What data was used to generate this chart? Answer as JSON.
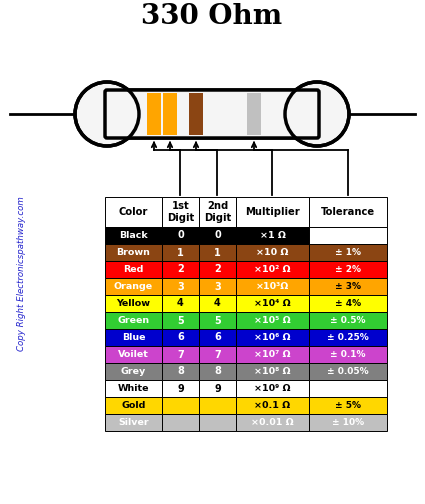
{
  "title": "330 Ohm",
  "colors": [
    "Black",
    "Brown",
    "Red",
    "Orange",
    "Yellow",
    "Green",
    "Blue",
    "Voilet",
    "Grey",
    "White",
    "Gold",
    "Silver"
  ],
  "digit1": [
    "0",
    "1",
    "2",
    "3",
    "4",
    "5",
    "6",
    "7",
    "8",
    "9",
    "",
    ""
  ],
  "digit2": [
    "0",
    "1",
    "2",
    "3",
    "4",
    "5",
    "6",
    "7",
    "8",
    "9",
    "",
    ""
  ],
  "multiplier": [
    "×1 Ω",
    "×10 Ω",
    "×10² Ω",
    "×10³Ω",
    "×10⁴ Ω",
    "×10⁵ Ω",
    "×10⁶ Ω",
    "×10⁷ Ω",
    "×10⁸ Ω",
    "×10⁹ Ω",
    "×0.1 Ω",
    "×0.01 Ω"
  ],
  "tolerance": [
    "",
    "± 1%",
    "± 2%",
    "± 3%",
    "± 4%",
    "± 0.5%",
    "± 0.25%",
    "± 0.1%",
    "± 0.05%",
    "",
    "± 5%",
    "± 10%"
  ],
  "bg_colors": [
    "#000000",
    "#8B4513",
    "#FF0000",
    "#FFA500",
    "#FFFF00",
    "#32CD32",
    "#0000CD",
    "#CC44CC",
    "#808080",
    "#FFFFFF",
    "#FFD700",
    "#C0C0C0"
  ],
  "text_colors": [
    "#FFFFFF",
    "#FFFFFF",
    "#FFFFFF",
    "#FFFFFF",
    "#000000",
    "#FFFFFF",
    "#FFFFFF",
    "#FFFFFF",
    "#FFFFFF",
    "#000000",
    "#000000",
    "#FFFFFF"
  ],
  "tol_bg_colors": [
    "#FFFFFF",
    "#8B4513",
    "#FF0000",
    "#FFA500",
    "#FFFF00",
    "#32CD32",
    "#0000CD",
    "#CC44CC",
    "#808080",
    "#FFFFFF",
    "#FFD700",
    "#C0C0C0"
  ],
  "tol_text_colors": [
    "#000000",
    "#FFFFFF",
    "#FFFFFF",
    "#000000",
    "#000000",
    "#FFFFFF",
    "#FFFFFF",
    "#FFFFFF",
    "#FFFFFF",
    "#000000",
    "#000000",
    "#FFFFFF"
  ],
  "watermark": "Copy Right Electronicspathway.com",
  "band1_color": "#FFA500",
  "band2_color": "#FFA500",
  "band3_color": "#8B4513",
  "band4_color": "#C0C0C0",
  "fig_w": 4.25,
  "fig_h": 5.04,
  "dpi": 100
}
